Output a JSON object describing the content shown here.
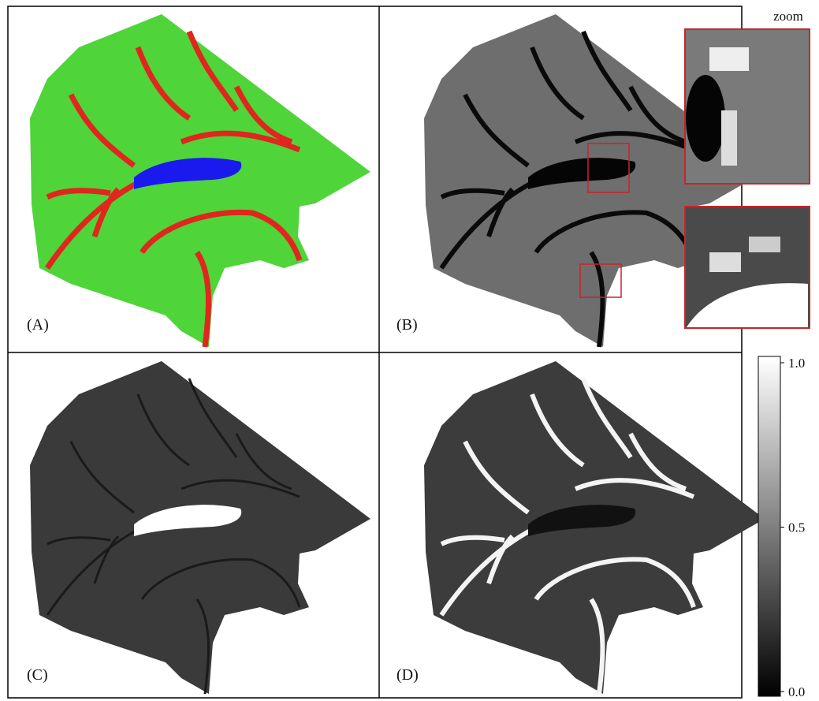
{
  "zoom_label": "zoom",
  "panels": [
    {
      "label": "(A)"
    },
    {
      "label": "(B)"
    },
    {
      "label": "(C)"
    },
    {
      "label": "(D)"
    }
  ],
  "colorbar": {
    "ylim": [
      0,
      1
    ],
    "yticks": [
      {
        "value": 0,
        "label": "0.0"
      },
      {
        "value": 0.5,
        "label": "0.5"
      },
      {
        "value": 1,
        "label": "1.0"
      }
    ]
  }
}
